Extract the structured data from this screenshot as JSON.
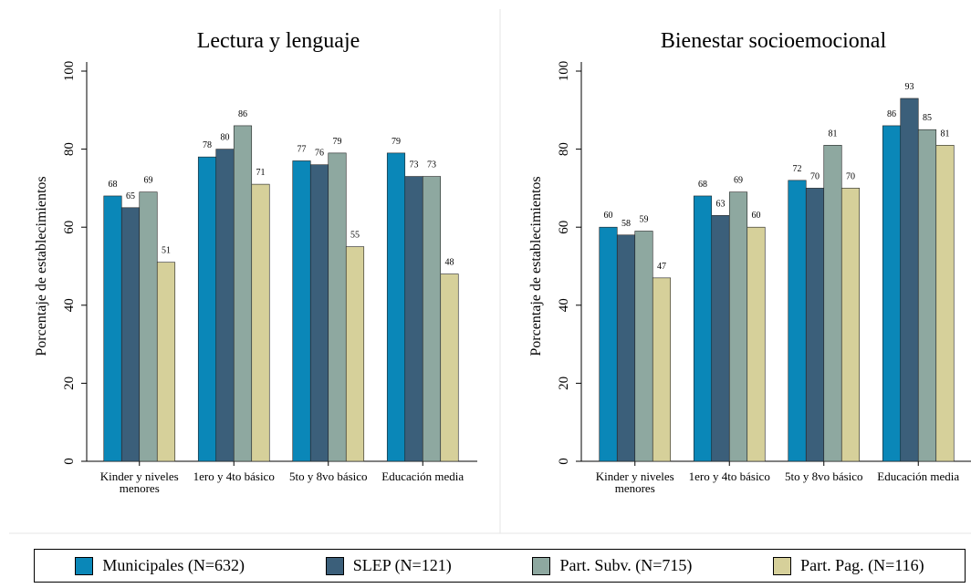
{
  "chart_data": [
    {
      "type": "bar",
      "title": "Lectura y lenguaje",
      "y_label": "Porcentaje de establecimientos",
      "categories": [
        "Kinder y niveles menores",
        "1ero y 4to básico",
        "5to y 8vo básico",
        "Educación media"
      ],
      "series": [
        {
          "name": "Municipales (N=632)",
          "color": "#0a87b8",
          "values": [
            68,
            78,
            77,
            79
          ]
        },
        {
          "name": "SLEP (N=121)",
          "color": "#3b5f7a",
          "values": [
            65,
            80,
            76,
            73
          ]
        },
        {
          "name": "Part. Subv. (N=715)",
          "color": "#8ea8a0",
          "values": [
            69,
            86,
            79,
            73
          ]
        },
        {
          "name": "Part. Pag. (N=116)",
          "color": "#d6d09a",
          "values": [
            51,
            71,
            55,
            48
          ]
        }
      ],
      "ylim": [
        0,
        100
      ],
      "yticks": [
        0,
        20,
        40,
        60,
        80,
        100
      ]
    },
    {
      "type": "bar",
      "title": "Bienestar socioemocional",
      "y_label": "Porcentaje de establecimientos",
      "categories": [
        "Kinder y niveles menores",
        "1ero y 4to básico",
        "5to y 8vo básico",
        "Educación media"
      ],
      "series": [
        {
          "name": "Municipales (N=632)",
          "color": "#0a87b8",
          "values": [
            60,
            68,
            72,
            86
          ]
        },
        {
          "name": "SLEP (N=121)",
          "color": "#3b5f7a",
          "values": [
            58,
            63,
            70,
            93
          ]
        },
        {
          "name": "Part. Subv. (N=715)",
          "color": "#8ea8a0",
          "values": [
            59,
            69,
            81,
            85
          ]
        },
        {
          "name": "Part. Pag. (N=116)",
          "color": "#d6d09a",
          "values": [
            47,
            60,
            70,
            81
          ]
        }
      ],
      "ylim": [
        0,
        100
      ],
      "yticks": [
        0,
        20,
        40,
        60,
        80,
        100
      ]
    }
  ]
}
